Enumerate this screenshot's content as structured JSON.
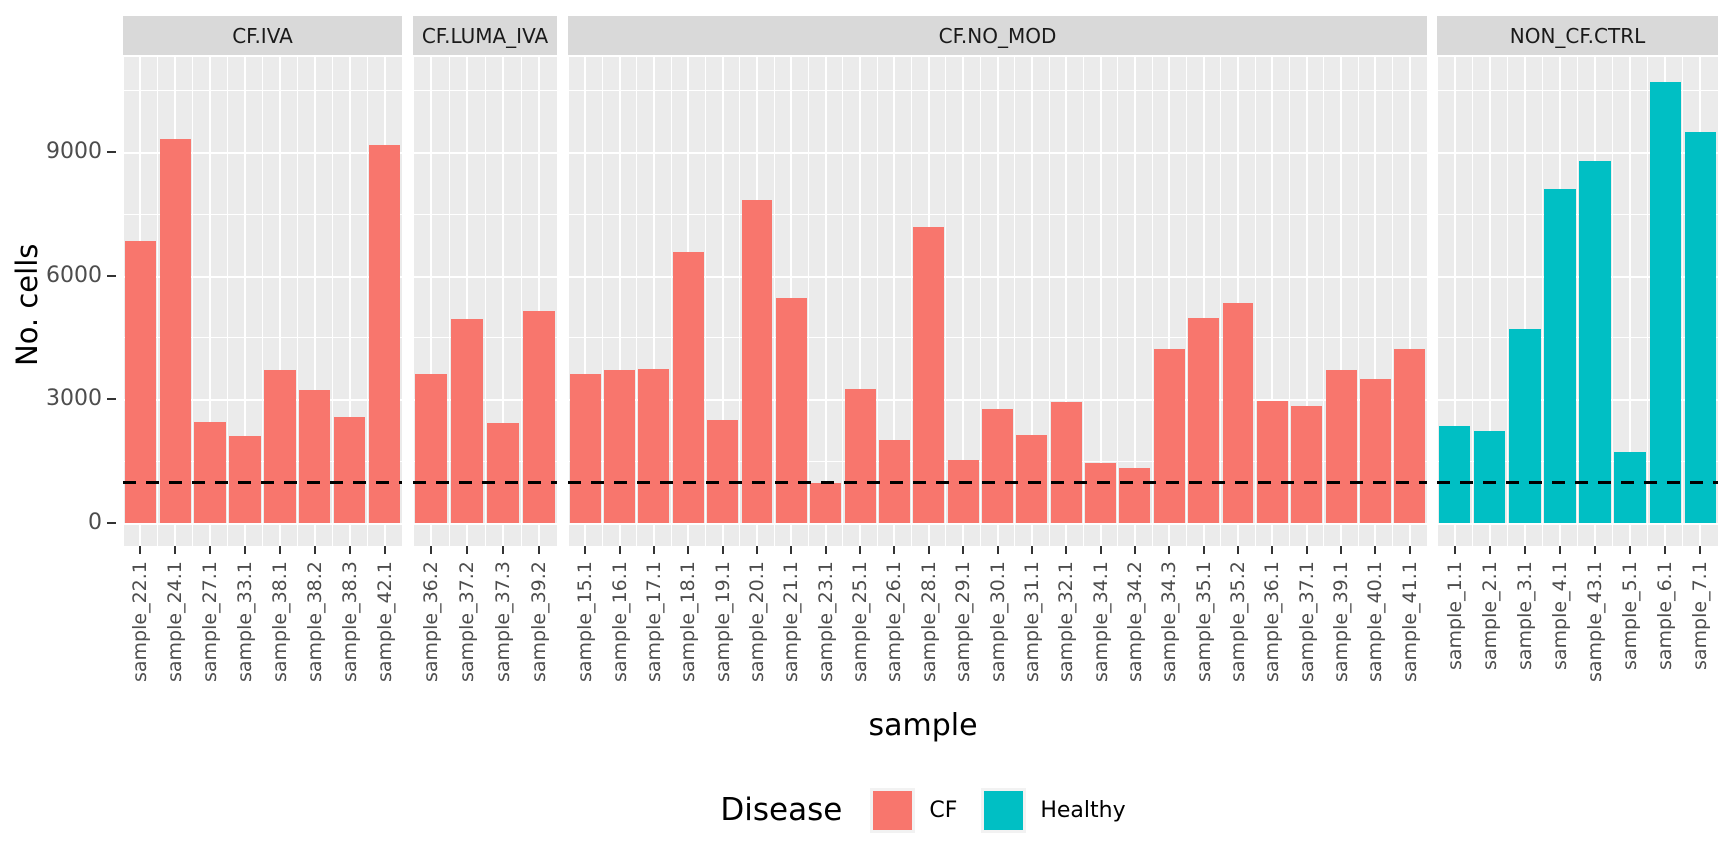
{
  "chart_data": {
    "type": "bar",
    "title": "",
    "xlabel": "sample",
    "ylabel": "No. cells",
    "ylim": [
      0,
      11300
    ],
    "yticks": [
      0,
      3000,
      6000,
      9000
    ],
    "grid": {
      "major": [
        0,
        3000,
        6000,
        9000
      ],
      "minor": [
        1500,
        4500,
        7500,
        10500
      ]
    },
    "reference_line": {
      "y": 1000,
      "style": "dashed",
      "color": "#000000"
    },
    "legend": {
      "title": "Disease",
      "position": "bottom",
      "items": [
        {
          "label": "CF",
          "color": "#F8766D"
        },
        {
          "label": "Healthy",
          "color": "#00BFC4"
        }
      ]
    },
    "facets": [
      {
        "label": "CF.IVA",
        "disease": "CF",
        "color": "#F8766D",
        "categories": [
          "sample_22.1",
          "sample_24.1",
          "sample_27.1",
          "sample_33.1",
          "sample_38.1",
          "sample_38.2",
          "sample_38.3",
          "sample_42.1"
        ],
        "values": [
          6850,
          9310,
          2450,
          2100,
          3710,
          3220,
          2570,
          9170
        ]
      },
      {
        "label": "CF.LUMA_IVA",
        "disease": "CF",
        "color": "#F8766D",
        "categories": [
          "sample_36.2",
          "sample_37.2",
          "sample_37.3",
          "sample_39.2"
        ],
        "values": [
          3600,
          4950,
          2420,
          5150
        ]
      },
      {
        "label": "CF.NO_MOD",
        "disease": "CF",
        "color": "#F8766D",
        "categories": [
          "sample_15.1",
          "sample_16.1",
          "sample_17.1",
          "sample_18.1",
          "sample_19.1",
          "sample_20.1",
          "sample_21.1",
          "sample_23.1",
          "sample_25.1",
          "sample_26.1",
          "sample_28.1",
          "sample_29.1",
          "sample_30.1",
          "sample_31.1",
          "sample_32.1",
          "sample_34.1",
          "sample_34.2",
          "sample_34.3",
          "sample_35.1",
          "sample_35.2",
          "sample_36.1",
          "sample_37.1",
          "sample_39.1",
          "sample_40.1",
          "sample_41.1"
        ],
        "values": [
          3600,
          3700,
          3740,
          6580,
          2480,
          7840,
          5450,
          960,
          3250,
          2000,
          7180,
          1520,
          2750,
          2120,
          2930,
          1440,
          1320,
          4210,
          4960,
          5330,
          2950,
          2830,
          3700,
          3480,
          4220
        ]
      },
      {
        "label": "NON_CF.CTRL",
        "disease": "Healthy",
        "color": "#00BFC4",
        "categories": [
          "sample_1.1",
          "sample_2.1",
          "sample_3.1",
          "sample_4.1",
          "sample_43.1",
          "sample_5.1",
          "sample_6.1",
          "sample_7.1"
        ],
        "values": [
          2350,
          2220,
          4700,
          8100,
          8770,
          1720,
          10690,
          9480
        ]
      }
    ]
  },
  "colors": {
    "panel_bg": "#EBEBEB",
    "strip_bg": "#D9D9D9",
    "gridline": "#FFFFFF",
    "axis_text": "#4D4D4D",
    "strip_text": "#1A1A1A",
    "tick_mark": "#333333",
    "bar_cf": "#F8766D",
    "bar_healthy": "#00BFC4",
    "reference_line": "#000000"
  }
}
